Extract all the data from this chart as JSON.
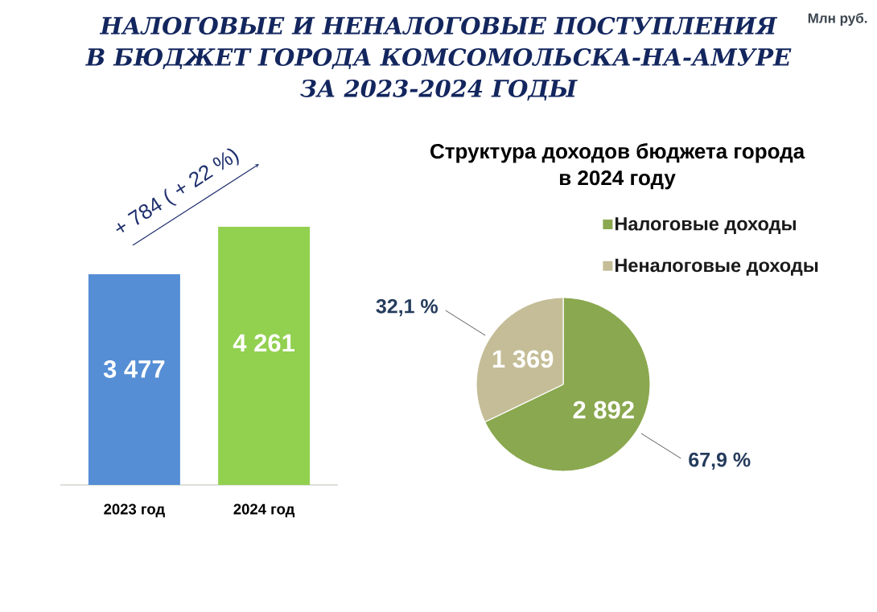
{
  "chart_data": [
    {
      "type": "bar",
      "title": "НАЛОГОВЫЕ И НЕНАЛОГОВЫЕ ПОСТУПЛЕНИЯ\nВ БЮДЖЕТ ГОРОДА КОМСОМОЛЬСКА-НА-АМУРЕ\nЗА 2023-2024 ГОДЫ",
      "categories": [
        "2023 год",
        "2024 год"
      ],
      "values": [
        3477,
        4261
      ],
      "colors": [
        "#558ed5",
        "#92d050"
      ],
      "value_labels": [
        "3 477",
        "4 261"
      ],
      "annotations": [
        "+ 784 ( + 22 %)",
        "Млн руб."
      ]
    },
    {
      "type": "pie",
      "title": "Структура доходов бюджета города\nв 2024 году",
      "categories": [
        "Налоговые доходы",
        "Неналоговые доходы"
      ],
      "values": [
        2892,
        1369
      ],
      "colors": [
        "#8aa84f",
        "#c4bd97"
      ],
      "value_labels": [
        "2 892",
        "1 369"
      ],
      "annotations": [
        "67,9 %",
        "32,1 %"
      ],
      "legend": "top right"
    }
  ]
}
